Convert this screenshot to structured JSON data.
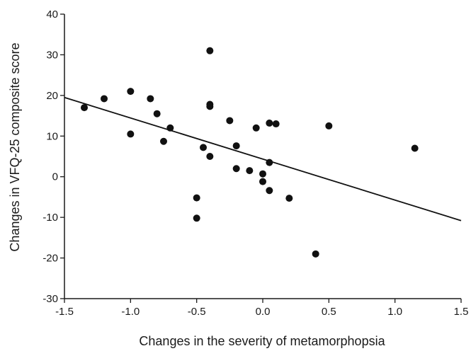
{
  "chart_data": {
    "type": "scatter",
    "title": "",
    "xlabel": "Changes in the severity of metamorphopsia",
    "ylabel": "Changes in VFQ-25 composite score",
    "xlim": [
      -1.5,
      1.5
    ],
    "ylim": [
      -30,
      40
    ],
    "x_ticks": [
      -1.5,
      -1.0,
      -0.5,
      0.0,
      0.5,
      1.0,
      1.5
    ],
    "x_tick_labels": [
      "-1.5",
      "-1.0",
      "-0.5",
      "0.0",
      "0.5",
      "1.0",
      "1.5"
    ],
    "y_ticks": [
      -30,
      -20,
      -10,
      0,
      10,
      20,
      30,
      40
    ],
    "y_tick_labels": [
      "-30",
      "-20",
      "-10",
      "0",
      "10",
      "20",
      "30",
      "40"
    ],
    "grid": false,
    "legend": "none",
    "marker_color": "#111111",
    "series": [
      {
        "points": [
          {
            "x": -1.35,
            "y": 17
          },
          {
            "x": -1.2,
            "y": 19.2
          },
          {
            "x": -1.0,
            "y": 21
          },
          {
            "x": -1.0,
            "y": 10.5
          },
          {
            "x": -0.85,
            "y": 19.2
          },
          {
            "x": -0.8,
            "y": 15.5
          },
          {
            "x": -0.75,
            "y": 8.7
          },
          {
            "x": -0.7,
            "y": 12
          },
          {
            "x": -0.5,
            "y": -5.2
          },
          {
            "x": -0.5,
            "y": -10.2
          },
          {
            "x": -0.45,
            "y": 7.2
          },
          {
            "x": -0.4,
            "y": 31
          },
          {
            "x": -0.4,
            "y": 17.8
          },
          {
            "x": -0.4,
            "y": 17.3
          },
          {
            "x": -0.4,
            "y": 5
          },
          {
            "x": -0.25,
            "y": 13.8
          },
          {
            "x": -0.2,
            "y": 7.6
          },
          {
            "x": -0.2,
            "y": 2
          },
          {
            "x": -0.1,
            "y": 1.5
          },
          {
            "x": -0.05,
            "y": 12
          },
          {
            "x": 0.0,
            "y": 0.7
          },
          {
            "x": 0.0,
            "y": -1.2
          },
          {
            "x": 0.05,
            "y": 13.2
          },
          {
            "x": 0.05,
            "y": 3.5
          },
          {
            "x": 0.05,
            "y": -3.4
          },
          {
            "x": 0.1,
            "y": 13
          },
          {
            "x": 0.2,
            "y": -5.3
          },
          {
            "x": 0.4,
            "y": -19
          },
          {
            "x": 0.5,
            "y": 12.5
          },
          {
            "x": 1.15,
            "y": 7
          }
        ]
      }
    ],
    "regression_line": {
      "x": [
        -1.5,
        1.5
      ],
      "y": [
        19.5,
        -10.8
      ]
    }
  }
}
